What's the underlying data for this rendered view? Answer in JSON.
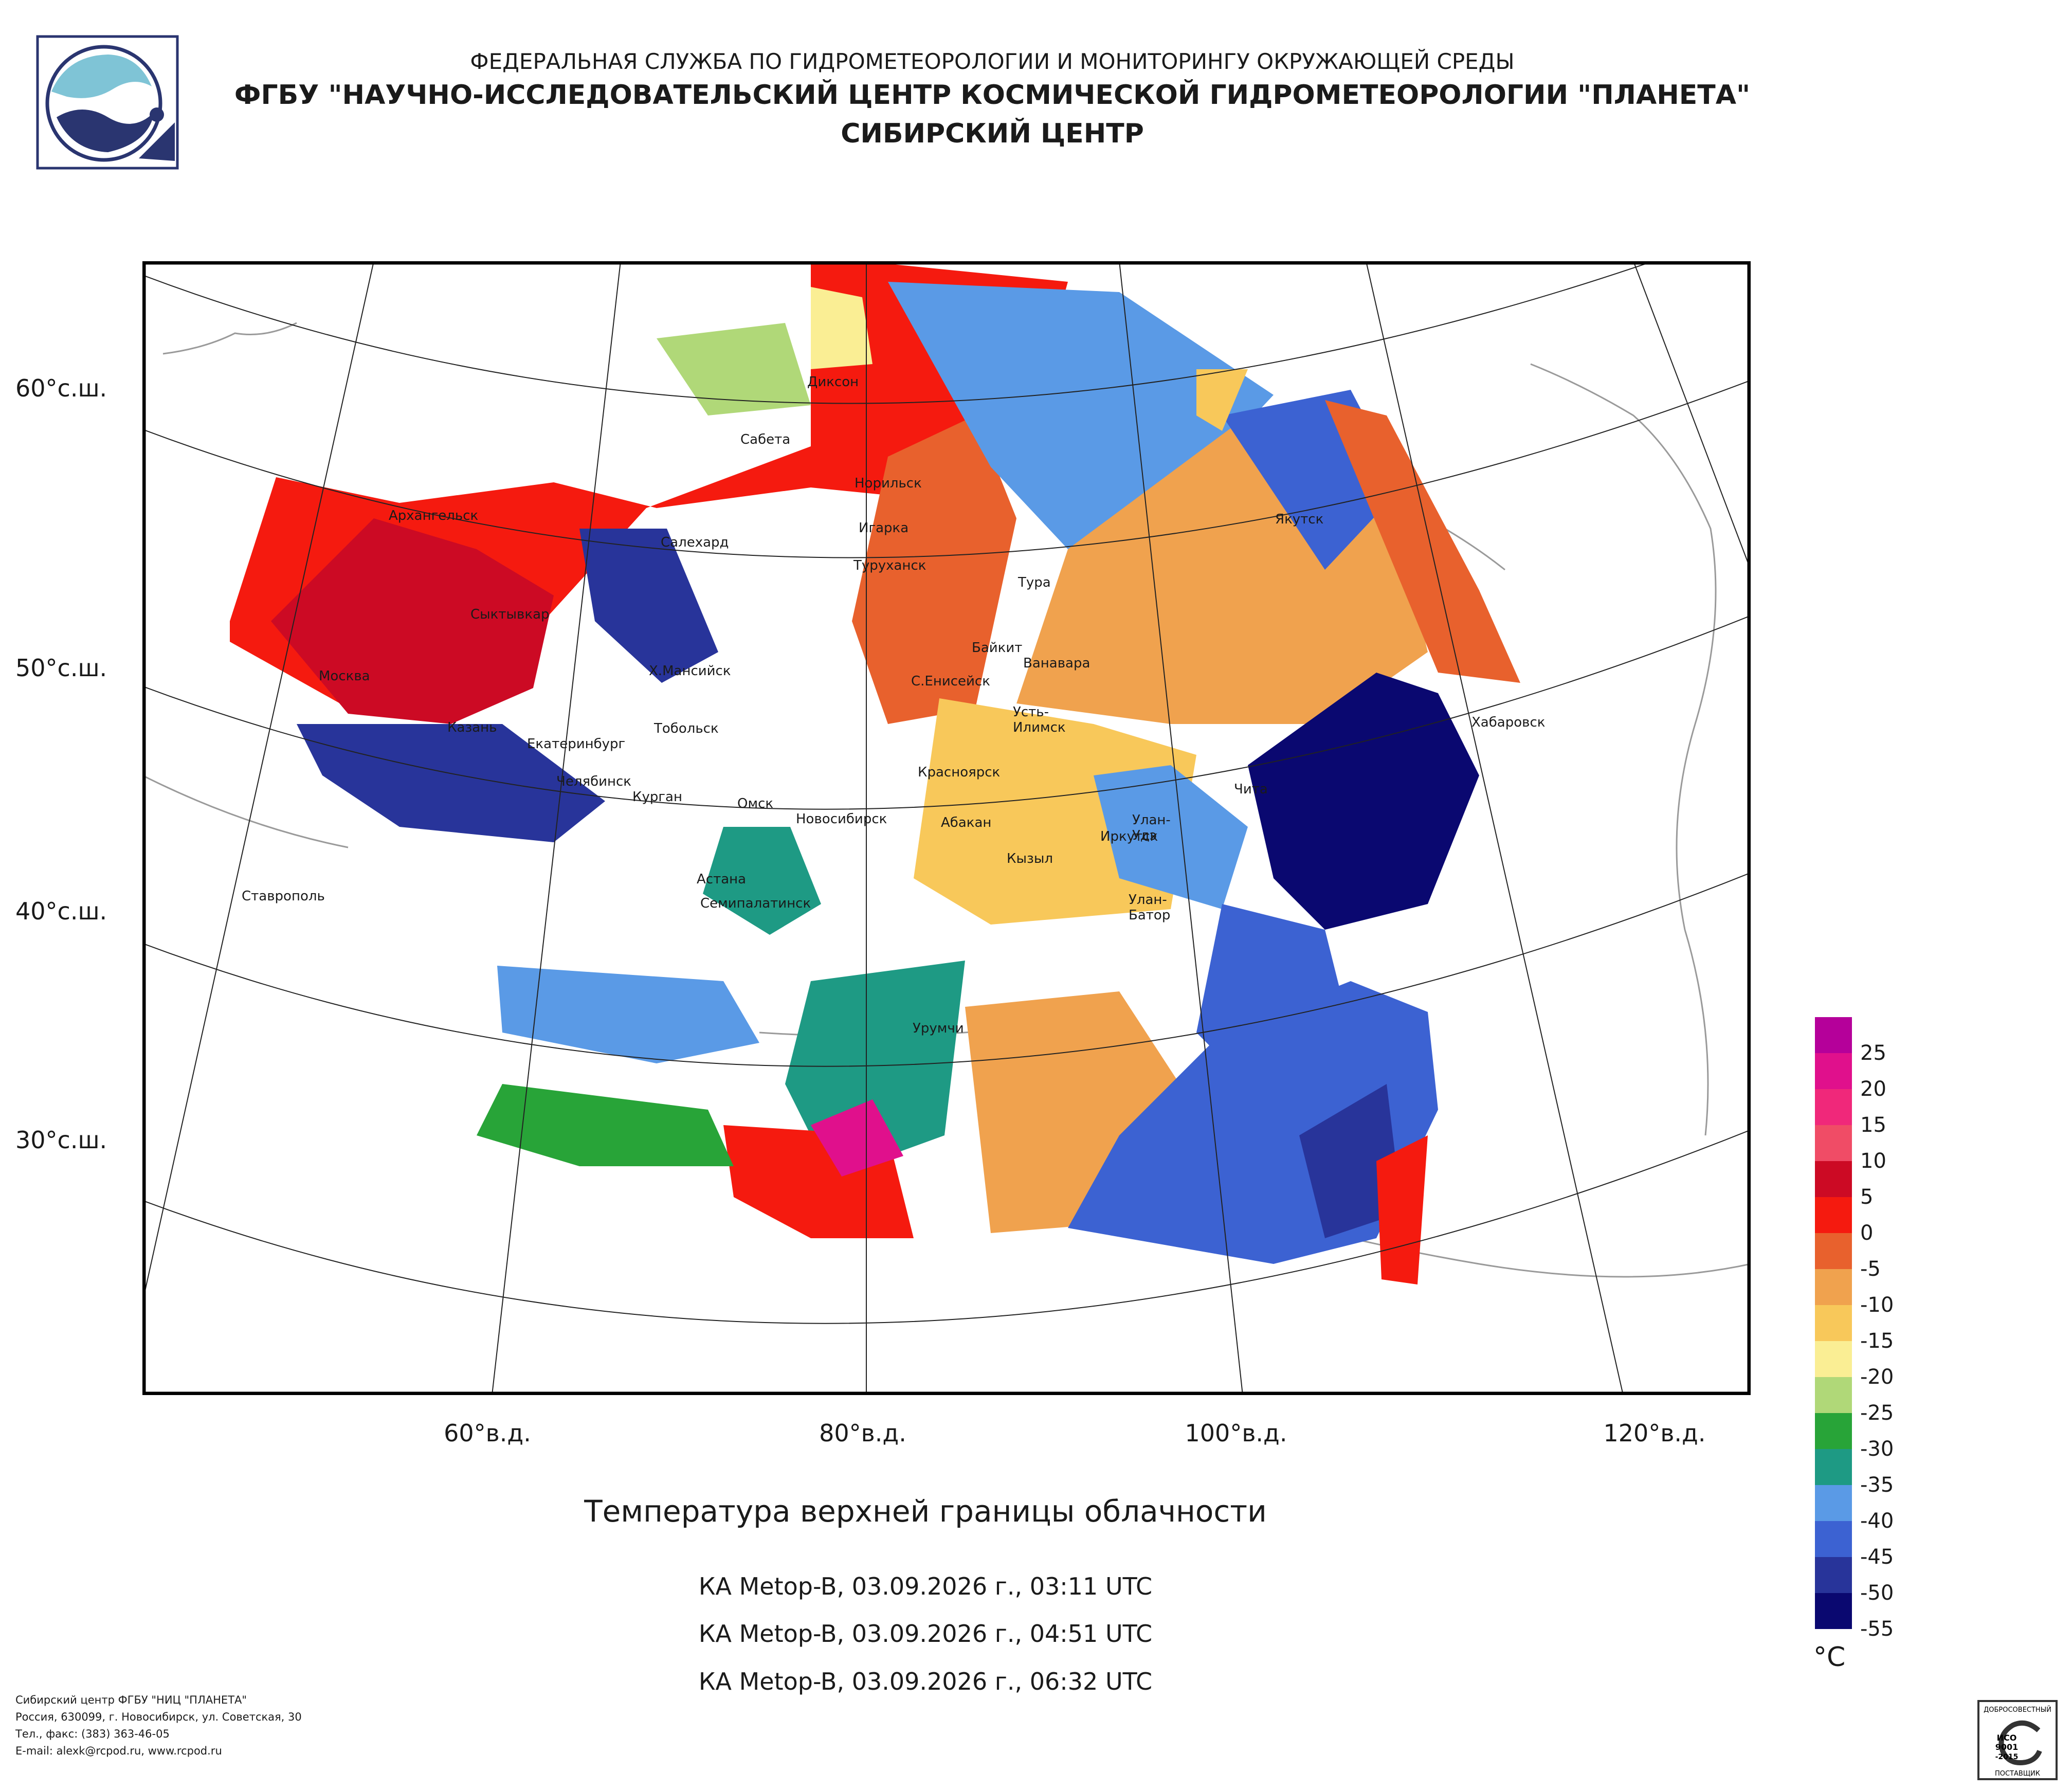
{
  "header": {
    "line1": "ФЕДЕРАЛЬНАЯ СЛУЖБА ПО ГИДРОМЕТЕОРОЛОГИИ И МОНИТОРИНГУ ОКРУЖАЮЩЕЙ СРЕДЫ",
    "line2": "ФГБУ \"НАУЧНО-ИССЛЕДОВАТЕЛЬСКИЙ ЦЕНТР КОСМИЧЕСКОЙ ГИДРОМЕТЕОРОЛОГИИ \"ПЛАНЕТА\"",
    "line3": "СИБИРСКИЙ ЦЕНТР"
  },
  "map": {
    "lat_labels": [
      "60°с.ш.",
      "50°с.ш.",
      "40°с.ш.",
      "30°с.ш."
    ],
    "lon_labels": [
      "60°в.д.",
      "80°в.д.",
      "100°в.д.",
      "120°в.д."
    ],
    "cities": [
      "Диксон",
      "Сабета",
      "Норильск",
      "Якутск",
      "Архангельск",
      "Салехард",
      "Игарка",
      "Туруханск",
      "Тура",
      "Сыктывкар",
      "Байкит",
      "Ванавара",
      "Москва",
      "Х.Мансийск",
      "С.Енисейск",
      "Усть-Илимск",
      "Хабаровск",
      "Казань",
      "Тобольск",
      "Екатеринбург",
      "Красноярск",
      "Чита",
      "Челябинск",
      "Курган",
      "Омск",
      "Новосибирск",
      "Абакан",
      "Улан-Удэ",
      "Иркутск",
      "Кызыл",
      "Астана",
      "Ставрополь",
      "Улан-Батор",
      "Семипалатинск",
      "Урумчи"
    ]
  },
  "caption": {
    "title": "Температура верхней границы облачности",
    "passes": [
      "КА Metop-B, 03.09.2026 г., 03:11 UTC",
      "КА Metop-B, 03.09.2026 г., 04:51 UTC",
      "КА Metop-B, 03.09.2026 г., 06:32 UTC"
    ]
  },
  "legend": {
    "unit": "°C",
    "ticks": [
      "25",
      "20",
      "15",
      "10",
      "5",
      "0",
      "-5",
      "-10",
      "-15",
      "-20",
      "-25",
      "-30",
      "-35",
      "-40",
      "-45",
      "-50",
      "-55"
    ],
    "colors": [
      "#b5009a",
      "#e0108c",
      "#f0287a",
      "#f04c66",
      "#cc0a24",
      "#f51a0f",
      "#e8612d",
      "#f0a24e",
      "#f8c85a",
      "#faee94",
      "#b0d878",
      "#28a438",
      "#1e9a84",
      "#5a9ae6",
      "#3c62d2",
      "#28349a",
      "#0a0870"
    ]
  },
  "footer": {
    "lines": [
      "Сибирский центр ФГБУ \"НИЦ \"ПЛАНЕТА\"",
      "Россия, 630099, г. Новосибирск, ул. Советская, 30",
      "Тел., факс: (383) 363-46-05",
      "E-mail: alexk@rcpod.ru, www.rcpod.ru"
    ]
  },
  "cert": {
    "top": "ДОБРОСОВЕСТНЫЙ",
    "l1": "ИСО",
    "l2": "9001",
    "l3": "-2015",
    "bottom": "ПОСТАВЩИК"
  }
}
